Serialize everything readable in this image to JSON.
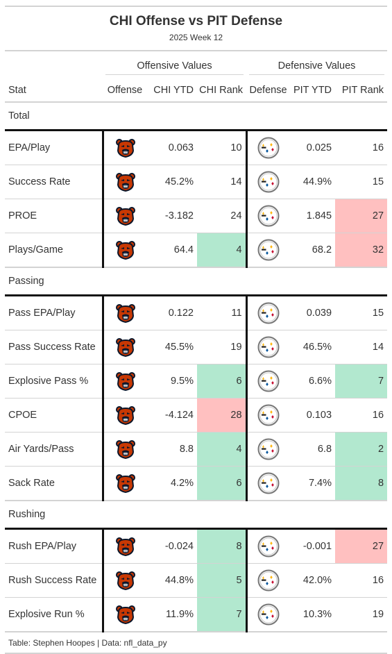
{
  "title": "CHI Offense vs PIT Defense",
  "subtitle": "2025 Week 12",
  "spanners": {
    "offense": "Offensive Values",
    "defense": "Defensive Values"
  },
  "columns": {
    "stat": "Stat",
    "offense": "Offense",
    "off_ytd": "CHI YTD",
    "off_rank": "CHI Rank",
    "defense": "Defense",
    "def_ytd": "PIT YTD",
    "def_rank": "PIT Rank"
  },
  "footer": "Table: Stephen Hoopes | Data: nfl_data_py",
  "colors": {
    "good": "#b2e8cf",
    "bad": "#ffc0c0",
    "bears_orange": "#c83803",
    "bears_navy": "#0b162a",
    "steelers_gold": "#ffb612"
  },
  "icons": {
    "offense": "bears-logo-icon",
    "defense": "steelers-logo-icon"
  },
  "chart_data": {
    "type": "table",
    "title": "CHI Offense vs PIT Defense",
    "subtitle": "2025 Week 12",
    "groups": [
      {
        "name": "Total",
        "rows": [
          {
            "stat": "EPA/Play",
            "off_ytd": "0.063",
            "off_rank": "10",
            "off_hl": "",
            "def_ytd": "0.025",
            "def_rank": "16",
            "def_hl": ""
          },
          {
            "stat": "Success Rate",
            "off_ytd": "45.2%",
            "off_rank": "14",
            "off_hl": "",
            "def_ytd": "44.9%",
            "def_rank": "15",
            "def_hl": ""
          },
          {
            "stat": "PROE",
            "off_ytd": "-3.182",
            "off_rank": "24",
            "off_hl": "",
            "def_ytd": "1.845",
            "def_rank": "27",
            "def_hl": "bad"
          },
          {
            "stat": "Plays/Game",
            "off_ytd": "64.4",
            "off_rank": "4",
            "off_hl": "good",
            "def_ytd": "68.2",
            "def_rank": "32",
            "def_hl": "bad"
          }
        ]
      },
      {
        "name": "Passing",
        "rows": [
          {
            "stat": "Pass EPA/Play",
            "off_ytd": "0.122",
            "off_rank": "11",
            "off_hl": "",
            "def_ytd": "0.039",
            "def_rank": "15",
            "def_hl": ""
          },
          {
            "stat": "Pass Success Rate",
            "off_ytd": "45.5%",
            "off_rank": "19",
            "off_hl": "",
            "def_ytd": "46.5%",
            "def_rank": "14",
            "def_hl": ""
          },
          {
            "stat": "Explosive Pass %",
            "off_ytd": "9.5%",
            "off_rank": "6",
            "off_hl": "good",
            "def_ytd": "6.6%",
            "def_rank": "7",
            "def_hl": "good"
          },
          {
            "stat": "CPOE",
            "off_ytd": "-4.124",
            "off_rank": "28",
            "off_hl": "bad",
            "def_ytd": "0.103",
            "def_rank": "16",
            "def_hl": ""
          },
          {
            "stat": "Air Yards/Pass",
            "off_ytd": "8.8",
            "off_rank": "4",
            "off_hl": "good",
            "def_ytd": "6.8",
            "def_rank": "2",
            "def_hl": "good"
          },
          {
            "stat": "Sack Rate",
            "off_ytd": "4.2%",
            "off_rank": "6",
            "off_hl": "good",
            "def_ytd": "7.4%",
            "def_rank": "8",
            "def_hl": "good"
          }
        ]
      },
      {
        "name": "Rushing",
        "rows": [
          {
            "stat": "Rush EPA/Play",
            "off_ytd": "-0.024",
            "off_rank": "8",
            "off_hl": "good",
            "def_ytd": "-0.001",
            "def_rank": "27",
            "def_hl": "bad"
          },
          {
            "stat": "Rush Success Rate",
            "off_ytd": "44.8%",
            "off_rank": "5",
            "off_hl": "good",
            "def_ytd": "42.0%",
            "def_rank": "16",
            "def_hl": ""
          },
          {
            "stat": "Explosive Run %",
            "off_ytd": "11.9%",
            "off_rank": "7",
            "off_hl": "good",
            "def_ytd": "10.3%",
            "def_rank": "19",
            "def_hl": ""
          }
        ]
      }
    ]
  }
}
